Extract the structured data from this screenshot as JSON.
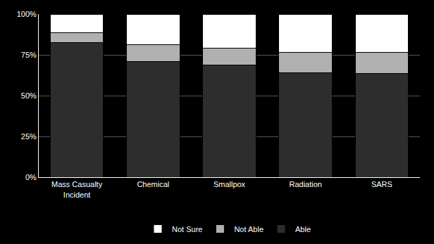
{
  "chart_data": {
    "type": "bar",
    "stacked": true,
    "categories": [
      "Mass Casualty\nIncident",
      "Chemical",
      "Smallpox",
      "Radiation",
      "SARS"
    ],
    "series": [
      {
        "name": "Able",
        "color": "#2d2d2d",
        "values": [
          82.5,
          71.0,
          68.6,
          63.8,
          63.5
        ]
      },
      {
        "name": "Not Able",
        "color": "#b0b0b0",
        "values": [
          6.1,
          10.4,
          10.7,
          12.8,
          13.2
        ]
      },
      {
        "name": "Not Sure",
        "color": "#ffffff",
        "values": [
          11.3,
          18.6,
          20.7,
          23.4,
          23.3
        ]
      }
    ],
    "ylim": [
      0,
      100
    ],
    "yticks": [
      {
        "value": 0,
        "label": "0%"
      },
      {
        "value": 25,
        "label": "25%"
      },
      {
        "value": 50,
        "label": "50%"
      },
      {
        "value": 75,
        "label": "75%"
      },
      {
        "value": 100,
        "label": "100%"
      }
    ],
    "grid": true,
    "legend": "bottom"
  }
}
